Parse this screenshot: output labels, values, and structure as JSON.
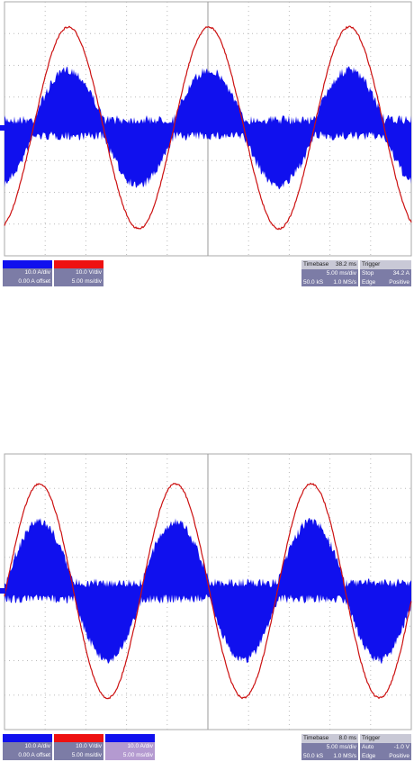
{
  "panels": [
    {
      "channels": [
        {
          "lines": [
            "10.0 A/div",
            "0.00 A offset"
          ]
        },
        {
          "lines": [
            "10.0 V/div",
            "5.00 ms/div"
          ]
        }
      ],
      "timebase": {
        "label": "Timebase",
        "value": "38.2 ms",
        "lines": [
          [
            "",
            "5.00 ms/div"
          ],
          [
            "50.0 kS",
            "1.0 MS/s"
          ]
        ]
      },
      "trigger": {
        "label": "Trigger",
        "lines": [
          [
            "Stop",
            "34.2 A"
          ],
          [
            "Edge",
            "Positive"
          ]
        ]
      }
    },
    {
      "channels": [
        {
          "lines": [
            "10.0 A/div",
            "0.00 A offset"
          ]
        },
        {
          "lines": [
            "10.0 V/div",
            "5.00 ms/div"
          ]
        },
        {
          "lines": [
            "10.0 A/div",
            "5.00 ms/div"
          ]
        }
      ],
      "timebase": {
        "label": "Timebase",
        "value": "8.0 ms",
        "lines": [
          [
            "",
            "5.00 ms/div"
          ],
          [
            "50.0 kS",
            "1.0 MS/s"
          ]
        ]
      },
      "trigger": {
        "label": "Trigger",
        "lines": [
          [
            "Auto",
            "-1.0 V"
          ],
          [
            "Edge",
            "Positive"
          ]
        ]
      }
    }
  ]
}
